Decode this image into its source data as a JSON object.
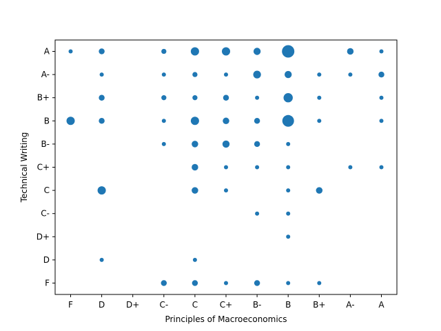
{
  "chart_data": {
    "type": "scatter",
    "title": "",
    "xlabel": "Principles of Macroeconomics",
    "ylabel": "Technical Writing",
    "x_categories": [
      "F",
      "D",
      "D+",
      "C-",
      "C",
      "C+",
      "B-",
      "B",
      "B+",
      "A-",
      "A"
    ],
    "y_categories": [
      "F",
      "D",
      "D+",
      "C-",
      "C",
      "C+",
      "B-",
      "B",
      "B+",
      "A-",
      "A"
    ],
    "grid": false,
    "marker_color": "#1f77b4",
    "size_encoding": "relative count of students (1 = smallest marker)",
    "points": [
      {
        "x": "F",
        "y": "A",
        "count": 1
      },
      {
        "x": "D",
        "y": "A",
        "count": 2
      },
      {
        "x": "C-",
        "y": "A",
        "count": 1.5
      },
      {
        "x": "C",
        "y": "A",
        "count": 4
      },
      {
        "x": "C+",
        "y": "A",
        "count": 4
      },
      {
        "x": "B-",
        "y": "A",
        "count": 3
      },
      {
        "x": "B",
        "y": "A",
        "count": 9
      },
      {
        "x": "A-",
        "y": "A",
        "count": 2.5
      },
      {
        "x": "A",
        "y": "A",
        "count": 1
      },
      {
        "x": "D",
        "y": "A-",
        "count": 1
      },
      {
        "x": "C-",
        "y": "A-",
        "count": 1
      },
      {
        "x": "C",
        "y": "A-",
        "count": 1.5
      },
      {
        "x": "C+",
        "y": "A-",
        "count": 1
      },
      {
        "x": "B-",
        "y": "A-",
        "count": 3.5
      },
      {
        "x": "B",
        "y": "A-",
        "count": 3
      },
      {
        "x": "B+",
        "y": "A-",
        "count": 1
      },
      {
        "x": "A-",
        "y": "A-",
        "count": 1
      },
      {
        "x": "A",
        "y": "A-",
        "count": 2
      },
      {
        "x": "D",
        "y": "B+",
        "count": 2
      },
      {
        "x": "C-",
        "y": "B+",
        "count": 1.5
      },
      {
        "x": "C",
        "y": "B+",
        "count": 1.5
      },
      {
        "x": "C+",
        "y": "B+",
        "count": 2
      },
      {
        "x": "B-",
        "y": "B+",
        "count": 1
      },
      {
        "x": "B",
        "y": "B+",
        "count": 5
      },
      {
        "x": "B+",
        "y": "B+",
        "count": 1
      },
      {
        "x": "A",
        "y": "B+",
        "count": 1
      },
      {
        "x": "F",
        "y": "B",
        "count": 4
      },
      {
        "x": "D",
        "y": "B",
        "count": 2
      },
      {
        "x": "C-",
        "y": "B",
        "count": 1
      },
      {
        "x": "C",
        "y": "B",
        "count": 4
      },
      {
        "x": "C+",
        "y": "B",
        "count": 2.5
      },
      {
        "x": "B-",
        "y": "B",
        "count": 2
      },
      {
        "x": "B",
        "y": "B",
        "count": 8
      },
      {
        "x": "B+",
        "y": "B",
        "count": 1
      },
      {
        "x": "A",
        "y": "B",
        "count": 1
      },
      {
        "x": "C-",
        "y": "B-",
        "count": 1
      },
      {
        "x": "C",
        "y": "B-",
        "count": 2.5
      },
      {
        "x": "C+",
        "y": "B-",
        "count": 3
      },
      {
        "x": "B-",
        "y": "B-",
        "count": 2
      },
      {
        "x": "B",
        "y": "B-",
        "count": 1
      },
      {
        "x": "C",
        "y": "C+",
        "count": 2.5
      },
      {
        "x": "C+",
        "y": "C+",
        "count": 1
      },
      {
        "x": "B-",
        "y": "C+",
        "count": 1
      },
      {
        "x": "B",
        "y": "C+",
        "count": 1
      },
      {
        "x": "A-",
        "y": "C+",
        "count": 1
      },
      {
        "x": "A",
        "y": "C+",
        "count": 1
      },
      {
        "x": "D",
        "y": "C",
        "count": 4
      },
      {
        "x": "C",
        "y": "C",
        "count": 2.5
      },
      {
        "x": "C+",
        "y": "C",
        "count": 1
      },
      {
        "x": "B",
        "y": "C",
        "count": 1
      },
      {
        "x": "B+",
        "y": "C",
        "count": 2.5
      },
      {
        "x": "B-",
        "y": "C-",
        "count": 1
      },
      {
        "x": "B",
        "y": "C-",
        "count": 1
      },
      {
        "x": "B",
        "y": "D+",
        "count": 1
      },
      {
        "x": "D",
        "y": "D",
        "count": 1
      },
      {
        "x": "C",
        "y": "D",
        "count": 1
      },
      {
        "x": "C-",
        "y": "F",
        "count": 2
      },
      {
        "x": "C",
        "y": "F",
        "count": 2
      },
      {
        "x": "C+",
        "y": "F",
        "count": 1
      },
      {
        "x": "B-",
        "y": "F",
        "count": 2
      },
      {
        "x": "B",
        "y": "F",
        "count": 1
      },
      {
        "x": "B+",
        "y": "F",
        "count": 1
      }
    ]
  }
}
